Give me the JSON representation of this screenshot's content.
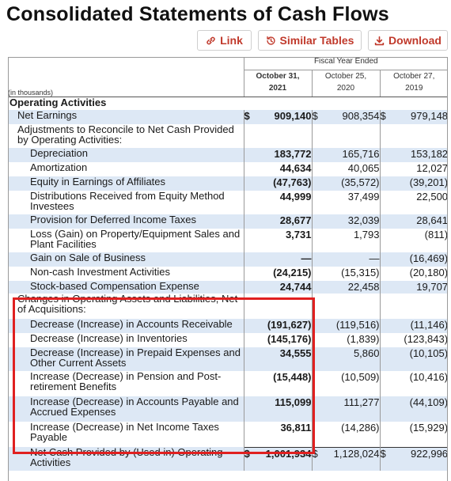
{
  "title": "Consolidated Statements of Cash Flows",
  "toolbar": {
    "link_label": "Link",
    "similar_label": "Similar Tables",
    "download_label": "Download",
    "link_icon": "link-icon",
    "similar_icon": "history-icon",
    "download_icon": "download-icon",
    "accent": "#c0392b"
  },
  "table": {
    "header_period": "Fiscal Year Ended",
    "unit_note": "(in thousands)",
    "columns": [
      {
        "date": "October 31,",
        "year": "2021"
      },
      {
        "date": "October 25,",
        "year": "2020"
      },
      {
        "date": "October 27,",
        "year": "2019"
      }
    ],
    "rows": [
      {
        "label": "Operating Activities",
        "kind": "section",
        "shade": false,
        "indent": 0,
        "h": 17
      },
      {
        "label": "Net Earnings",
        "shade": true,
        "indent": 1,
        "h": 18,
        "values": [
          [
            "$",
            "909,140"
          ],
          [
            "$",
            "908,354"
          ],
          [
            "$",
            "979,148"
          ]
        ]
      },
      {
        "label": "Adjustments to Reconcile to Net Cash Provided by Operating Activities:",
        "shade": false,
        "indent": 1,
        "h": 30
      },
      {
        "label": "Depreciation",
        "shade": true,
        "indent": 2,
        "h": 18,
        "values": [
          [
            "",
            "183,772"
          ],
          [
            "",
            "165,716"
          ],
          [
            "",
            "153,182"
          ]
        ]
      },
      {
        "label": "Amortization",
        "shade": false,
        "indent": 2,
        "h": 18,
        "values": [
          [
            "",
            "44,634"
          ],
          [
            "",
            "40,065"
          ],
          [
            "",
            "12,027"
          ]
        ]
      },
      {
        "label": "Equity in Earnings of Affiliates",
        "shade": true,
        "indent": 2,
        "h": 18,
        "values": [
          [
            "",
            "(47,763)"
          ],
          [
            "",
            "(35,572)"
          ],
          [
            "",
            "(39,201)"
          ]
        ]
      },
      {
        "label": "Distributions Received from Equity Method Investees",
        "shade": false,
        "indent": 2,
        "h": 30,
        "values": [
          [
            "",
            "44,999"
          ],
          [
            "",
            "37,499"
          ],
          [
            "",
            "22,500"
          ]
        ]
      },
      {
        "label": "Provision for Deferred Income Taxes",
        "shade": true,
        "indent": 2,
        "h": 18,
        "values": [
          [
            "",
            "28,677"
          ],
          [
            "",
            "32,039"
          ],
          [
            "",
            "28,641"
          ]
        ]
      },
      {
        "label": "Loss (Gain) on Property/Equipment Sales and Plant Facilities",
        "shade": false,
        "indent": 2,
        "h": 30,
        "values": [
          [
            "",
            "3,731"
          ],
          [
            "",
            "1,793"
          ],
          [
            "",
            "(811)"
          ]
        ]
      },
      {
        "label": "Gain on Sale of Business",
        "shade": true,
        "indent": 2,
        "h": 18,
        "values": [
          [
            "",
            "—"
          ],
          [
            "",
            "—"
          ],
          [
            "",
            "(16,469)"
          ]
        ]
      },
      {
        "label": "Non-cash Investment Activities",
        "shade": false,
        "indent": 2,
        "h": 18,
        "values": [
          [
            "",
            "(24,215)"
          ],
          [
            "",
            "(15,315)"
          ],
          [
            "",
            "(20,180)"
          ]
        ]
      },
      {
        "label": "Stock-based Compensation Expense",
        "shade": true,
        "indent": 2,
        "h": 16,
        "values": [
          [
            "",
            "24,744"
          ],
          [
            "",
            "22,458"
          ],
          [
            "",
            "19,707"
          ]
        ]
      },
      {
        "label": "Changes in Operating Assets and Liabilities, Net of Acquisitions:",
        "shade": false,
        "indent": 1,
        "h": 32
      },
      {
        "label": "Decrease (Increase) in Accounts Receivable",
        "shade": true,
        "indent": 2,
        "h": 18,
        "values": [
          [
            "",
            "(191,627)"
          ],
          [
            "",
            "(119,516)"
          ],
          [
            "",
            "(11,146)"
          ]
        ]
      },
      {
        "label": "Decrease (Increase) in Inventories",
        "shade": false,
        "indent": 2,
        "h": 18,
        "values": [
          [
            "",
            "(145,176)"
          ],
          [
            "",
            "(1,839)"
          ],
          [
            "",
            "(123,843)"
          ]
        ]
      },
      {
        "label": "Decrease (Increase) in Prepaid Expenses and Other Current Assets",
        "shade": true,
        "indent": 2,
        "h": 30,
        "values": [
          [
            "",
            "34,555"
          ],
          [
            "",
            "5,860"
          ],
          [
            "",
            "(10,105)"
          ]
        ]
      },
      {
        "label": "Increase (Decrease) in Pension and Post-retirement Benefits",
        "shade": false,
        "indent": 2,
        "h": 32,
        "values": [
          [
            "",
            "(15,448)"
          ],
          [
            "",
            "(10,509)"
          ],
          [
            "",
            "(10,416)"
          ]
        ]
      },
      {
        "label": "Increase (Decrease) in Accounts Payable and Accrued Expenses",
        "shade": true,
        "indent": 2,
        "h": 32,
        "values": [
          [
            "",
            "115,099"
          ],
          [
            "",
            "111,277"
          ],
          [
            "",
            "(44,109)"
          ]
        ]
      },
      {
        "label": "Increase (Decrease) in Net Income Taxes Payable",
        "shade": false,
        "indent": 2,
        "h": 32,
        "values": [
          [
            "",
            "36,811"
          ],
          [
            "",
            "(14,286)"
          ],
          [
            "",
            "(15,929)"
          ]
        ]
      },
      {
        "label": "Net Cash Provided by (Used in) Operating Activities",
        "shade": true,
        "kind": "total",
        "indent": 3,
        "h": 30,
        "values": [
          [
            "$",
            "1,001,934"
          ],
          [
            "$",
            "1,128,024"
          ],
          [
            "$",
            "922,996"
          ]
        ]
      }
    ]
  },
  "highlight_color": "#e02020"
}
